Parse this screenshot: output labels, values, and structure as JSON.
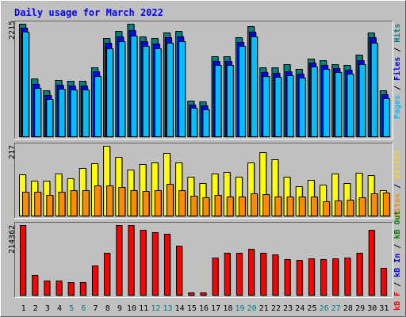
{
  "page": {
    "title": "Daily usage for March 2022",
    "legend_top": [
      {
        "text": "Pages",
        "color": "#00bfff"
      },
      {
        "text": " / ",
        "color": "#000000"
      },
      {
        "text": "Files",
        "color": "#0000ff"
      },
      {
        "text": " / ",
        "color": "#000000"
      },
      {
        "text": "Hits",
        "color": "#008080"
      }
    ],
    "legend_mid": [
      {
        "text": "Sites",
        "color": "#ff8c00"
      },
      {
        "text": " / ",
        "color": "#000000"
      },
      {
        "text": "Visits",
        "color": "#ffd700"
      }
    ],
    "legend_bot": [
      {
        "text": "kB F",
        "color": "#ff0000"
      },
      {
        "text": " / ",
        "color": "#000000"
      },
      {
        "text": "kB In",
        "color": "#0000ff"
      },
      {
        "text": " / ",
        "color": "#000000"
      },
      {
        "text": "kB Out",
        "color": "#008000"
      }
    ]
  },
  "colors": {
    "hits": "#008080",
    "files": "#0000ff",
    "pages": "#00bfff",
    "visits": "#ffff00",
    "sites": "#ff8c00",
    "kbf": "#ff0000",
    "weekday": "#000000",
    "weekend": "#008080",
    "panel_bg": "#c0c0c0"
  },
  "chart_data": {
    "type": "bar",
    "x": [
      1,
      2,
      3,
      4,
      5,
      6,
      7,
      8,
      9,
      10,
      11,
      12,
      13,
      14,
      15,
      16,
      17,
      18,
      19,
      20,
      21,
      22,
      23,
      24,
      25,
      26,
      27,
      28,
      29,
      30,
      31
    ],
    "weekend_days": [
      5,
      6,
      12,
      13,
      19,
      20,
      26,
      27
    ],
    "panels": [
      {
        "id": "hits-files-pages",
        "max_label": "2215",
        "max": 2215,
        "series": [
          {
            "name": "Hits",
            "values": [
              2215,
              1140,
              910,
              1110,
              1090,
              1090,
              1350,
              1930,
              2080,
              2215,
              1970,
              1930,
              2050,
              2080,
              700,
              690,
              1580,
              1580,
              1950,
              2170,
              1350,
              1350,
              1420,
              1320,
              1530,
              1490,
              1420,
              1400,
              1600,
              2050,
              900
            ]
          },
          {
            "name": "Files",
            "values": [
              2180,
              1080,
              860,
              1060,
              1040,
              1040,
              1320,
              1880,
              2020,
              2140,
              1920,
              1870,
              1990,
              2020,
              670,
              650,
              1530,
              1530,
              1910,
              2110,
              1310,
              1300,
              1320,
              1280,
              1490,
              1450,
              1390,
              1360,
              1550,
              1990,
              870
            ]
          },
          {
            "name": "Pages",
            "values": [
              2150,
              1050,
              830,
              1030,
              1010,
              1010,
              1280,
              1830,
              1970,
              2080,
              1870,
              1820,
              1940,
              1970,
              650,
              620,
              1490,
              1490,
              1870,
              2060,
              1280,
              1260,
              1290,
              1250,
              1460,
              1420,
              1360,
              1330,
              1510,
              1940,
              850
            ]
          }
        ]
      },
      {
        "id": "visits-sites",
        "max_label": "217",
        "max": 217,
        "series": [
          {
            "name": "Visits",
            "values": [
              128,
              108,
              108,
              130,
              116,
              148,
              162,
              217,
              182,
              142,
              160,
              164,
              196,
              164,
              122,
              102,
              130,
              135,
              120,
              164,
              198,
              174,
              122,
              92,
              110,
              96,
              130,
              100,
              132,
              126,
              78
            ]
          },
          {
            "name": "Sites",
            "values": [
              74,
              74,
              64,
              74,
              80,
              80,
              94,
              94,
              90,
              78,
              76,
              80,
              98,
              80,
              62,
              56,
              64,
              60,
              60,
              68,
              66,
              60,
              60,
              60,
              60,
              44,
              48,
              50,
              56,
              68,
              72
            ]
          }
        ]
      },
      {
        "id": "kbytes",
        "max_label": "214362",
        "max": 214362,
        "series": [
          {
            "name": "kB F",
            "values": [
              214362,
              60000,
              44000,
              44000,
              38000,
              38000,
              90000,
              130000,
              214362,
              214362,
              200000,
              192000,
              188000,
              150000,
              8000,
              8000,
              115000,
              128000,
              130000,
              142000,
              128000,
              124000,
              110000,
              108000,
              112000,
              110000,
              112000,
              114000,
              128000,
              200000,
              82000
            ]
          }
        ]
      }
    ]
  }
}
